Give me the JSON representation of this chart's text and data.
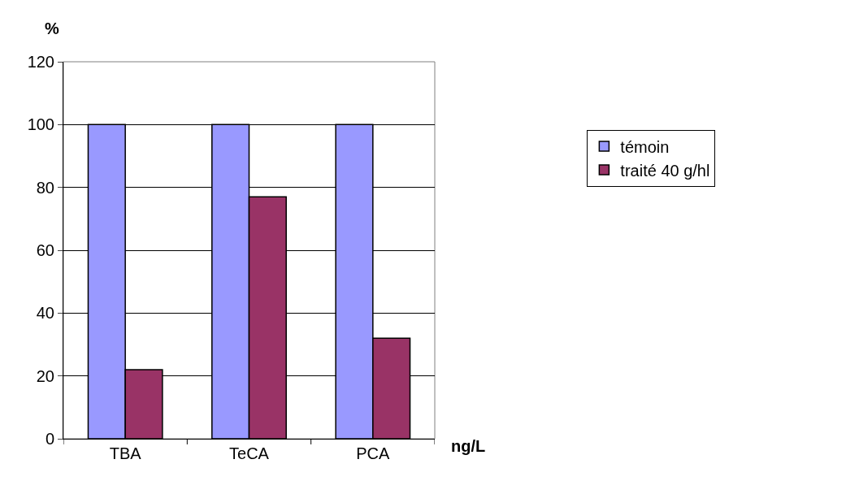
{
  "chart_data": {
    "type": "bar",
    "categories": [
      "TBA",
      "TeCA",
      "PCA"
    ],
    "series": [
      {
        "name": "témoin",
        "color": "#9999ff",
        "values": [
          100,
          100,
          100
        ]
      },
      {
        "name": "traité 40 g/hl",
        "color": "#993366",
        "values": [
          22,
          77,
          32
        ]
      }
    ],
    "xlabel": "ng/L",
    "ylabel": "%",
    "ylim": [
      0,
      120
    ],
    "yticks": [
      0,
      20,
      40,
      60,
      80,
      100,
      120
    ],
    "grid": "y",
    "legend": "right"
  }
}
